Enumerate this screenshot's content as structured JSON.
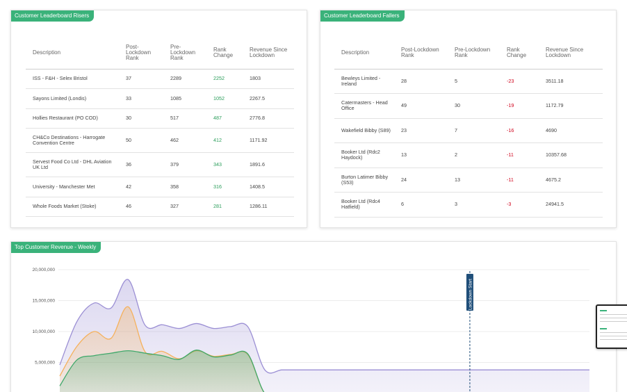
{
  "risers": {
    "title": "Customer Leaderboard Risers",
    "headers": [
      "Description",
      "Post-Lockdown Rank",
      "Pre-Lockdown Rank",
      "Rank Change",
      "Revenue Since Lockdown"
    ],
    "rows": [
      {
        "description": "ISS - F&H - Selex Bristol",
        "post": "37",
        "pre": "2289",
        "change": "2252",
        "revenue": "1803"
      },
      {
        "description": "Sayons Limited (Londis)",
        "post": "33",
        "pre": "1085",
        "change": "1052",
        "revenue": "2267.5"
      },
      {
        "description": "Hollies Restaurant (PO COD)",
        "post": "30",
        "pre": "517",
        "change": "487",
        "revenue": "2776.8"
      },
      {
        "description": "CH&Co Destinations - Harrogate Convention Centre",
        "post": "50",
        "pre": "462",
        "change": "412",
        "revenue": "1171.92"
      },
      {
        "description": "Servest Food Co Ltd - DHL Aviation UK Ltd",
        "post": "36",
        "pre": "379",
        "change": "343",
        "revenue": "1891.6"
      },
      {
        "description": "University - Manchester Met",
        "post": "42",
        "pre": "358",
        "change": "316",
        "revenue": "1408.5"
      },
      {
        "description": "Whole Foods Market (Stoke)",
        "post": "46",
        "pre": "327",
        "change": "281",
        "revenue": "1286.11"
      }
    ]
  },
  "fallers": {
    "title": "Customer Leaderboard Fallers",
    "headers": [
      "Description",
      "Post-Lockdown Rank",
      "Pre-Lockdown Rank",
      "Rank Change",
      "Revenue Since Lockdown"
    ],
    "rows": [
      {
        "description": "Bewleys Limited - Ireland",
        "post": "28",
        "pre": "5",
        "change": "-23",
        "revenue": "3511.18"
      },
      {
        "description": "Catermasters - Head Office",
        "post": "49",
        "pre": "30",
        "change": "-19",
        "revenue": "1172.79"
      },
      {
        "description": "Wakefield Bibby (S89)",
        "post": "23",
        "pre": "7",
        "change": "-16",
        "revenue": "4690"
      },
      {
        "description": "Booker Ltd (Rdc2 Haydock)",
        "post": "13",
        "pre": "2",
        "change": "-11",
        "revenue": "10357.68"
      },
      {
        "description": "Burton Latimer Bibby (S53)",
        "post": "24",
        "pre": "13",
        "change": "-11",
        "revenue": "4675.2"
      },
      {
        "description": "Booker Ltd (Rdc4 Hatfield)",
        "post": "6",
        "pre": "3",
        "change": "-3",
        "revenue": "24941.5"
      }
    ]
  },
  "weekly": {
    "title": "Top Customer Revenue - Weekly",
    "lockdown_label": "Lockdown Start",
    "colors": {
      "purple": "#9b8fd4",
      "orange": "#f5b15c",
      "green": "#3ea86a",
      "accent": "#3ab27a",
      "lockdown": "#1f4e79"
    }
  },
  "chart_data": {
    "type": "area",
    "title": "Top Customer Revenue - Weekly",
    "ylim": [
      0,
      20000000
    ],
    "yticks": [
      "5,000,000",
      "10,000,000",
      "15,000,000",
      "20,000,000"
    ],
    "ytick_values": [
      5000000,
      10000000,
      15000000,
      20000000
    ],
    "x": [
      0,
      1,
      2,
      3,
      4,
      5,
      6,
      7,
      8,
      9,
      10,
      11,
      12,
      13,
      14,
      15,
      16,
      17,
      18,
      19,
      20,
      21,
      22,
      23,
      24,
      25,
      26,
      27,
      28,
      29,
      30,
      31
    ],
    "lockdown_index": 24,
    "series": [
      {
        "values": [
          4600000,
          11600000,
          14600000,
          13800000,
          18400000,
          11000000,
          11100000,
          10500000,
          11300000,
          10500000,
          10800000,
          10800000,
          3800000,
          3800000,
          3800000,
          3800000,
          3800000,
          3800000,
          3800000,
          3800000,
          3800000,
          3800000,
          3800000,
          3800000,
          3800000,
          3800000,
          3800000,
          3800000,
          3800000,
          3800000,
          3800000,
          3800000
        ]
      },
      {
        "values": [
          2800000,
          7600000,
          10000000,
          8900000,
          14000000,
          6700000,
          6800000,
          5600000,
          6900000,
          6000000,
          6300000,
          6300000,
          0,
          0,
          0,
          0,
          0,
          0,
          0,
          0,
          0,
          0,
          0,
          0,
          0,
          0,
          0,
          0,
          0,
          0,
          0,
          0
        ]
      },
      {
        "values": [
          1200000,
          5400000,
          6100000,
          6500000,
          6900000,
          6500000,
          6100000,
          5500000,
          7000000,
          5900000,
          6200000,
          6400000,
          0,
          0,
          0,
          0,
          0,
          0,
          0,
          0,
          0,
          0,
          0,
          0,
          0,
          0,
          0,
          0,
          0,
          0,
          0,
          0
        ]
      }
    ]
  }
}
